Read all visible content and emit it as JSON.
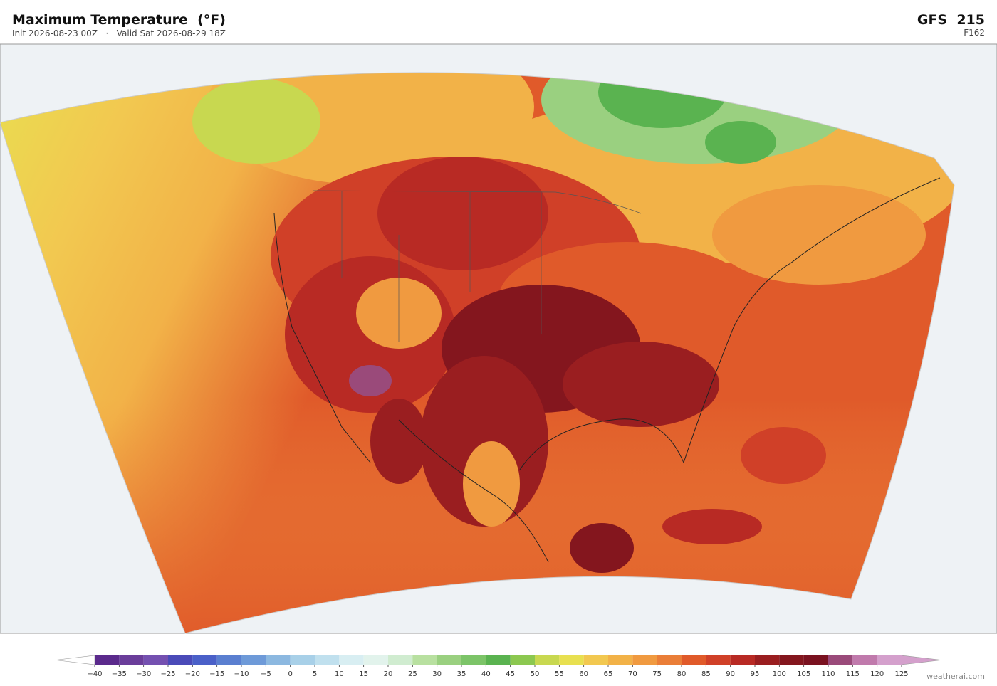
{
  "header": {
    "title": "Maximum Temperature  (°F)",
    "subtitle": "Init 2026-08-23 00Z   ·   Valid Sat 2026-08-29 18Z",
    "model": "GFS  215",
    "forecast_hour": "F162"
  },
  "colorbar": {
    "ticks": [
      {
        "value": -40,
        "label": "−40"
      },
      {
        "value": -35,
        "label": "−35"
      },
      {
        "value": -30,
        "label": "−30"
      },
      {
        "value": -25,
        "label": "−25"
      },
      {
        "value": -20,
        "label": "−20"
      },
      {
        "value": -15,
        "label": "−15"
      },
      {
        "value": -10,
        "label": "−10"
      },
      {
        "value": -5,
        "label": "−5"
      },
      0,
      5,
      10,
      15,
      20,
      25,
      30,
      35,
      40,
      45,
      50,
      55,
      60,
      65,
      70,
      75,
      80,
      85,
      90,
      95,
      100,
      105,
      110,
      115,
      120,
      125
    ],
    "colors": [
      "#5b2a8c",
      "#6a3d9a",
      "#7450b0",
      "#4a4ab8",
      "#4a60c8",
      "#5a7fd0",
      "#6e9ad8",
      "#8cb8e0",
      "#a8d0e8",
      "#c0e0ee",
      "#d8eef2",
      "#e2f3ec",
      "#d0ecd0",
      "#b8e0a0",
      "#9ad080",
      "#7cc468",
      "#5ab350",
      "#8cc850",
      "#c8d850",
      "#e8e050",
      "#f2c850",
      "#f2b248",
      "#f09a40",
      "#ea7e38",
      "#e05a2a",
      "#d04028",
      "#b82a24",
      "#9a1e20",
      "#84161e",
      "#7a1220",
      "#9a4a7a",
      "#c07aac",
      "#d4a0cc"
    ],
    "under_color": "#ffffff",
    "over_color": "#d4a0cc"
  },
  "credit": "weatherai.com"
}
